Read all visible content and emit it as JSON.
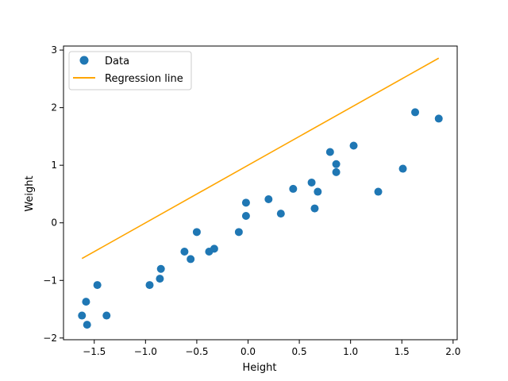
{
  "chart_data": {
    "type": "scatter",
    "xlabel": "Height",
    "ylabel": "Weight",
    "xlim": [
      -1.8,
      2.04
    ],
    "ylim": [
      -2.03,
      3.07
    ],
    "xticks": [
      {
        "value": -1.5,
        "label": "−1.5"
      },
      {
        "value": -1.0,
        "label": "−1.0"
      },
      {
        "value": -0.5,
        "label": "−0.5"
      },
      {
        "value": 0.0,
        "label": "0.0"
      },
      {
        "value": 0.5,
        "label": "0.5"
      },
      {
        "value": 1.0,
        "label": "1.0"
      },
      {
        "value": 1.5,
        "label": "1.5"
      },
      {
        "value": 2.0,
        "label": "2.0"
      }
    ],
    "yticks": [
      {
        "value": -2,
        "label": "−2"
      },
      {
        "value": -1,
        "label": "−1"
      },
      {
        "value": 0,
        "label": "0"
      },
      {
        "value": 1,
        "label": "1"
      },
      {
        "value": 2,
        "label": "2"
      },
      {
        "value": 3,
        "label": "3"
      }
    ],
    "grid": false,
    "legend_position": "top-left",
    "series": [
      {
        "name": "Data",
        "kind": "scatter",
        "color": "#1f77b4",
        "x": [
          -1.62,
          -1.58,
          -1.57,
          -1.47,
          -1.38,
          -0.96,
          -0.86,
          -0.85,
          -0.62,
          -0.56,
          -0.5,
          -0.38,
          -0.33,
          -0.09,
          -0.02,
          -0.02,
          0.2,
          0.32,
          0.44,
          0.62,
          0.65,
          0.68,
          0.8,
          0.86,
          0.86,
          1.03,
          1.27,
          1.51,
          1.63,
          1.86
        ],
        "y": [
          -1.61,
          -1.37,
          -1.77,
          -1.08,
          -1.61,
          -1.08,
          -0.97,
          -0.8,
          -0.5,
          -0.63,
          -0.16,
          -0.5,
          -0.45,
          -0.16,
          0.12,
          0.35,
          0.41,
          0.16,
          0.59,
          0.7,
          0.25,
          0.54,
          1.23,
          1.02,
          0.88,
          1.34,
          0.54,
          0.94,
          1.92,
          1.81
        ]
      },
      {
        "name": "Regression line",
        "kind": "line",
        "color": "#ffa500",
        "x": [
          -1.62,
          1.86
        ],
        "y": [
          -0.62,
          2.86
        ]
      }
    ]
  }
}
